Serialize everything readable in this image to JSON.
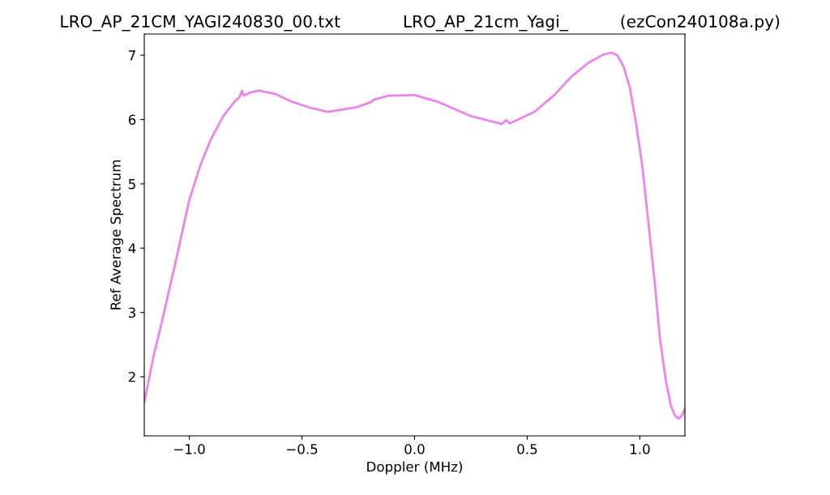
{
  "chart_data": {
    "type": "line",
    "title": "LRO_AP_21CM_YAGI240830_00.txt            LRO_AP_21cm_Yagi_          (ezCon240108a.py)",
    "xlabel": "Doppler (MHz)",
    "ylabel": "Ref Average Spectrum",
    "x": [
      -1.2,
      -1.16,
      -1.122,
      -1.06,
      -1.0,
      -0.95,
      -0.906,
      -0.85,
      -0.799,
      -0.777,
      -0.766,
      -0.759,
      -0.73,
      -0.691,
      -0.62,
      -0.547,
      -0.46,
      -0.385,
      -0.259,
      -0.194,
      -0.18,
      -0.115,
      0.0,
      0.1,
      0.245,
      0.388,
      0.406,
      0.424,
      0.532,
      0.62,
      0.694,
      0.77,
      0.838,
      0.874,
      0.9,
      0.928,
      0.955,
      0.982,
      1.01,
      1.036,
      1.065,
      1.09,
      1.115,
      1.137,
      1.155,
      1.173,
      1.188,
      1.2
    ],
    "series": [
      {
        "color": "#ee82ee",
        "values": [
          1.6,
          2.3,
          2.85,
          3.8,
          4.75,
          5.3,
          5.68,
          6.05,
          6.28,
          6.35,
          6.45,
          6.37,
          6.42,
          6.45,
          6.4,
          6.28,
          6.18,
          6.12,
          6.19,
          6.27,
          6.31,
          6.37,
          6.38,
          6.28,
          6.06,
          5.93,
          5.99,
          5.94,
          6.12,
          6.38,
          6.66,
          6.88,
          7.01,
          7.04,
          7.0,
          6.82,
          6.5,
          5.97,
          5.3,
          4.46,
          3.5,
          2.57,
          1.95,
          1.56,
          1.4,
          1.35,
          1.4,
          1.5
        ]
      }
    ],
    "xlim": [
      -1.2,
      1.2
    ],
    "ylim": [
      1.08,
      7.33
    ],
    "xticks": [
      {
        "value": -1.0,
        "label": "−1.0"
      },
      {
        "value": -0.5,
        "label": "−0.5"
      },
      {
        "value": 0.0,
        "label": "0.0"
      },
      {
        "value": 0.5,
        "label": "0.5"
      },
      {
        "value": 1.0,
        "label": "1.0"
      }
    ],
    "yticks": [
      2,
      3,
      4,
      5,
      6,
      7
    ],
    "grid": false,
    "legend": false
  }
}
